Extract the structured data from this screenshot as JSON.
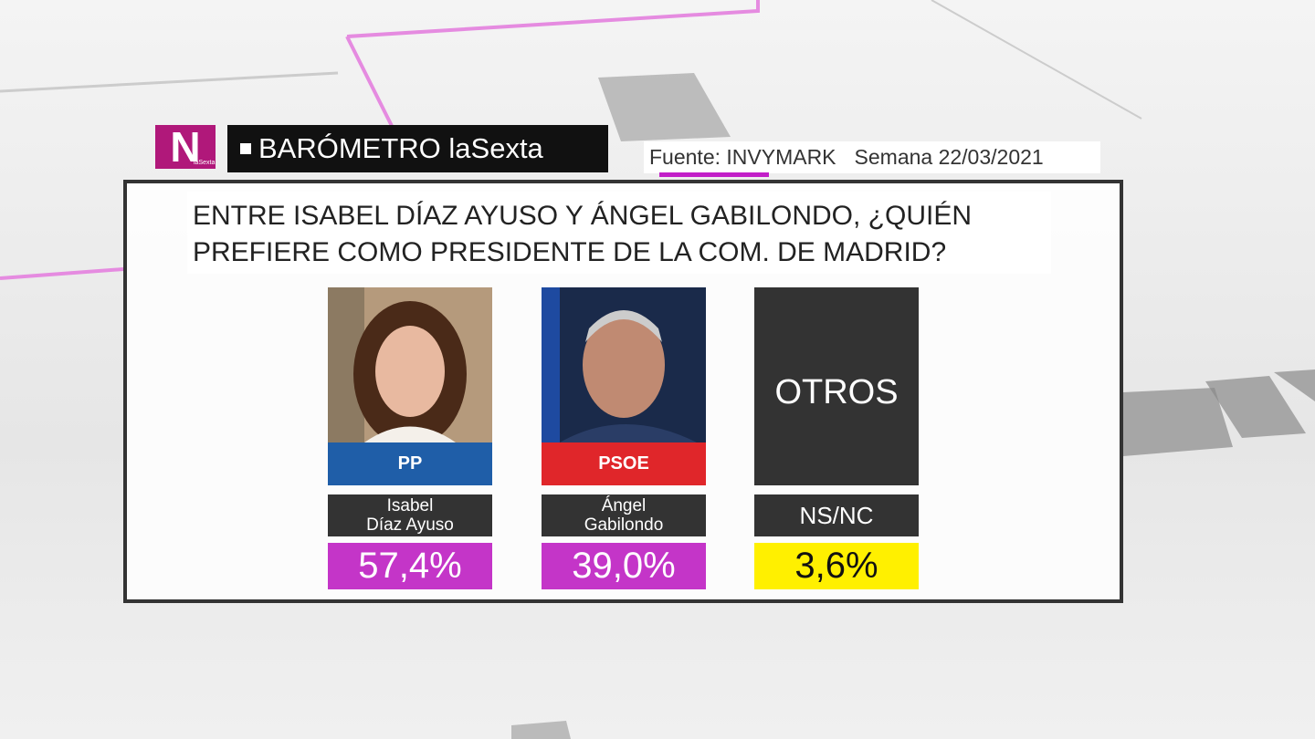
{
  "header": {
    "logo": "N",
    "logo_sub": "laSexta",
    "title": "BARÓMETRO laSexta",
    "source": "Fuente: INVYMARK",
    "week": "Semana 22/03/2021"
  },
  "question": [
    "ENTRE ISABEL DÍAZ AYUSO Y ÁNGEL GABILONDO, ¿QUIÉN",
    "PREFIERE COMO PRESIDENTE DE LA COM. DE MADRID?"
  ],
  "options": [
    {
      "badge": "PP",
      "name": [
        "Isabel",
        "Díaz Ayuso"
      ],
      "result": "57,4%"
    },
    {
      "badge": "PSOE",
      "name": [
        "Ángel",
        "Gabilondo"
      ],
      "result": "39,0%"
    },
    {
      "card": "OTROS",
      "name": [
        "NS/NC"
      ],
      "result": "3,6%"
    }
  ]
}
